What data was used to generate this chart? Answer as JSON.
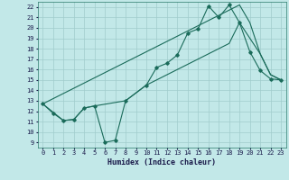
{
  "title": "",
  "xlabel": "Humidex (Indice chaleur)",
  "bg_color": "#c2e8e8",
  "grid_color": "#a0cccc",
  "line_color": "#1a6b5a",
  "xlim": [
    -0.5,
    23.5
  ],
  "ylim": [
    8.5,
    22.5
  ],
  "xticks": [
    0,
    1,
    2,
    3,
    4,
    5,
    6,
    7,
    8,
    9,
    10,
    11,
    12,
    13,
    14,
    15,
    16,
    17,
    18,
    19,
    20,
    21,
    22,
    23
  ],
  "yticks": [
    9,
    10,
    11,
    12,
    13,
    14,
    15,
    16,
    17,
    18,
    19,
    20,
    21,
    22
  ],
  "line1_x": [
    0,
    1,
    2,
    3,
    4,
    5,
    6,
    7,
    8,
    10,
    11,
    12,
    13,
    14,
    15,
    16,
    17,
    18,
    19,
    20,
    21,
    22,
    23
  ],
  "line1_y": [
    12.7,
    11.8,
    11.1,
    11.2,
    12.3,
    12.5,
    9.0,
    9.2,
    13.0,
    14.5,
    16.2,
    16.6,
    17.4,
    19.5,
    19.9,
    22.1,
    21.0,
    22.2,
    20.5,
    17.7,
    15.9,
    15.1,
    15.0
  ],
  "line2_x": [
    0,
    2,
    3,
    4,
    5,
    8,
    10,
    11,
    12,
    13,
    14,
    15,
    16,
    17,
    18,
    19,
    20,
    21,
    22,
    23
  ],
  "line2_y": [
    12.7,
    11.1,
    11.2,
    12.3,
    12.5,
    13.0,
    14.5,
    15.0,
    15.5,
    16.0,
    16.5,
    17.0,
    17.5,
    18.0,
    18.5,
    20.5,
    19.0,
    17.5,
    15.5,
    15.0
  ],
  "line3_x": [
    0,
    19,
    20,
    21,
    22,
    23
  ],
  "line3_y": [
    12.7,
    22.2,
    20.5,
    17.5,
    15.5,
    15.0
  ]
}
